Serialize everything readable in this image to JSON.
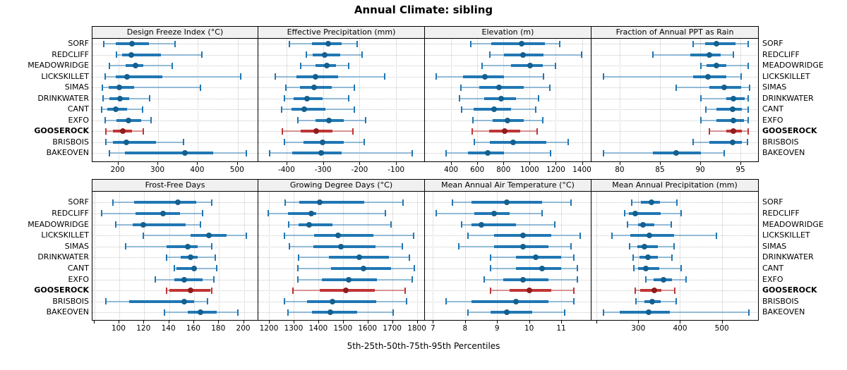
{
  "title": "Annual Climate: sibling",
  "caption": "5th-25th-50th-75th-95th Percentiles",
  "colors": {
    "blue": "#2077b4",
    "blue_dot": "#14608f",
    "blue_light": "rgba(32,119,180,0.45)",
    "red": "#c03535",
    "red_dot": "#8f1d1d",
    "red_light": "rgba(192,53,53,0.5)",
    "grid": "#c8c8c8",
    "strip_bg": "#f0f0f0",
    "border": "#000000"
  },
  "chart_data": {
    "type": "dotplot-percentiles",
    "percentiles": [
      5,
      25,
      50,
      75,
      95
    ],
    "sites": [
      "SORF",
      "REDCLIFF",
      "MEADOWRIDGE",
      "LICKSKILLET",
      "SIMAS",
      "DRINKWATER",
      "CANT",
      "EXFO",
      "GOOSEROCK",
      "BRISBOIS",
      "BAKEOVEN"
    ],
    "highlight_site": "GOOSEROCK",
    "panels": [
      {
        "title": "Design Freeze Index (°C)",
        "row": 0,
        "col": 0,
        "xlim": [
          135,
          550
        ],
        "ticks": [
          200,
          300,
          400,
          500
        ],
        "minor_ticks": [],
        "site_values": [
          [
            164,
            193,
            235,
            276,
            342
          ],
          [
            196,
            210,
            232,
            307,
            410
          ],
          [
            177,
            219,
            244,
            263,
            336
          ],
          [
            167,
            193,
            222,
            310,
            508
          ],
          [
            159,
            176,
            202,
            240,
            406
          ],
          [
            161,
            177,
            204,
            228,
            278
          ],
          [
            158,
            173,
            193,
            222,
            261
          ],
          [
            167,
            196,
            225,
            257,
            282
          ],
          [
            168,
            187,
            212,
            234,
            263
          ],
          [
            168,
            187,
            220,
            295,
            364
          ],
          [
            178,
            216,
            368,
            438,
            521
          ]
        ]
      },
      {
        "title": "Effective Precipitation (mm)",
        "row": 0,
        "col": 1,
        "xlim": [
          -477,
          -25
        ],
        "ticks": [
          -400,
          -300,
          -200,
          -100
        ],
        "minor_ticks": [],
        "site_values": [
          [
            -392,
            -331,
            -285,
            -249,
            -206
          ],
          [
            -345,
            -328,
            -295,
            -252,
            -194
          ],
          [
            -362,
            -321,
            -289,
            -265,
            -230
          ],
          [
            -431,
            -372,
            -320,
            -258,
            -131
          ],
          [
            -401,
            -364,
            -324,
            -277,
            -214
          ],
          [
            -406,
            -381,
            -343,
            -301,
            -229
          ],
          [
            -413,
            -387,
            -352,
            -293,
            -215
          ],
          [
            -368,
            -321,
            -283,
            -243,
            -183
          ],
          [
            -411,
            -362,
            -318,
            -275,
            -219
          ],
          [
            -405,
            -353,
            -301,
            -243,
            -187
          ],
          [
            -447,
            -384,
            -306,
            -250,
            -55
          ]
        ]
      },
      {
        "title": "Elevation (m)",
        "row": 0,
        "col": 2,
        "xlim": [
          200,
          1462
        ],
        "ticks": [
          400,
          600,
          800,
          1000,
          1200,
          1400
        ],
        "minor_ticks": [],
        "site_values": [
          [
            550,
            707,
            938,
            1117,
            1232
          ],
          [
            694,
            804,
            947,
            1108,
            1397
          ],
          [
            635,
            858,
            1006,
            1099,
            1200
          ],
          [
            284,
            493,
            658,
            804,
            1104
          ],
          [
            475,
            617,
            765,
            956,
            1152
          ],
          [
            466,
            653,
            783,
            894,
            1067
          ],
          [
            483,
            573,
            728,
            858,
            1045
          ],
          [
            569,
            716,
            831,
            956,
            1099
          ],
          [
            560,
            689,
            810,
            930,
            1060
          ],
          [
            578,
            698,
            872,
            1126,
            1295
          ],
          [
            363,
            528,
            680,
            804,
            1161
          ]
        ]
      },
      {
        "title": "Fraction of Annual PPT as Rain",
        "row": 0,
        "col": 3,
        "xlim": [
          76.5,
          97.1
        ],
        "ticks": [
          80,
          85,
          90,
          95
        ],
        "minor_ticks": [],
        "site_values": [
          [
            89.1,
            90.6,
            92.0,
            94.4,
            96.0
          ],
          [
            84.1,
            88.8,
            91.1,
            92.5,
            94.1
          ],
          [
            90.1,
            90.8,
            92.0,
            93.2,
            96.0
          ],
          [
            78.0,
            89.1,
            91.0,
            93.2,
            95.1
          ],
          [
            87.0,
            91.1,
            93.0,
            95.1,
            96.1
          ],
          [
            90.1,
            93.2,
            94.1,
            95.5,
            96.0
          ],
          [
            90.7,
            92.0,
            94.0,
            95.2,
            96.0
          ],
          [
            90.1,
            92.0,
            94.1,
            95.4,
            96.0
          ],
          [
            91.1,
            93.2,
            94.1,
            95.2,
            96.0
          ],
          [
            89.1,
            91.1,
            94.0,
            95.2,
            95.9
          ],
          [
            78.0,
            84.1,
            87.0,
            90.1,
            93.0
          ]
        ]
      },
      {
        "title": "Frost-Free Days",
        "row": 1,
        "col": 0,
        "xlim": [
          78.5,
          211
        ],
        "ticks": [
          100,
          120,
          140,
          160,
          180,
          200
        ],
        "minor_ticks": [
          80
        ],
        "site_values": [
          [
            95,
            112,
            147,
            162,
            174
          ],
          [
            86,
            113,
            135,
            149,
            167
          ],
          [
            97,
            111,
            119,
            153,
            165
          ],
          [
            119,
            157,
            172,
            186,
            202
          ],
          [
            105,
            138,
            155,
            163,
            174
          ],
          [
            138,
            149,
            157,
            163,
            177
          ],
          [
            144,
            146,
            160,
            162,
            178
          ],
          [
            129,
            144,
            152,
            167,
            176
          ],
          [
            138,
            140,
            157,
            173,
            174
          ],
          [
            89,
            108,
            152,
            160,
            171
          ],
          [
            136,
            155,
            165,
            178,
            195
          ]
        ]
      },
      {
        "title": "Growing Degree Days (°C)",
        "row": 1,
        "col": 1,
        "xlim": [
          1157,
          1827
        ],
        "ticks": [
          1200,
          1300,
          1400,
          1500,
          1600,
          1700,
          1800
        ],
        "minor_ticks": [],
        "site_values": [
          [
            1266,
            1324,
            1406,
            1586,
            1743
          ],
          [
            1198,
            1278,
            1373,
            1393,
            1672
          ],
          [
            1280,
            1321,
            1362,
            1458,
            1695
          ],
          [
            1262,
            1383,
            1480,
            1624,
            1788
          ],
          [
            1283,
            1380,
            1491,
            1632,
            1741
          ],
          [
            1321,
            1444,
            1567,
            1686,
            1769
          ],
          [
            1318,
            1452,
            1584,
            1695,
            1790
          ],
          [
            1318,
            1416,
            1523,
            1638,
            1780
          ],
          [
            1297,
            1406,
            1511,
            1629,
            1752
          ],
          [
            1262,
            1354,
            1458,
            1634,
            1757
          ],
          [
            1278,
            1376,
            1449,
            1558,
            1703
          ]
        ]
      },
      {
        "title": "Mean Annual Air Temperature (°C)",
        "row": 1,
        "col": 2,
        "xlim": [
          6.75,
          11.9
        ],
        "ticks": [
          7,
          8,
          9,
          10,
          11
        ],
        "minor_ticks": [],
        "site_values": [
          [
            7.6,
            8.2,
            9.3,
            10.4,
            11.3
          ],
          [
            7.1,
            8.3,
            8.9,
            9.4,
            10.4
          ],
          [
            7.9,
            8.2,
            8.5,
            9.6,
            10.8
          ],
          [
            8.1,
            8.9,
            9.8,
            10.7,
            11.6
          ],
          [
            7.8,
            8.9,
            9.8,
            10.6,
            11.3
          ],
          [
            8.8,
            9.6,
            10.2,
            11.0,
            11.4
          ],
          [
            8.8,
            9.6,
            10.4,
            11.0,
            11.5
          ],
          [
            8.6,
            9.2,
            9.8,
            10.6,
            11.5
          ],
          [
            8.8,
            9.4,
            10.0,
            10.7,
            11.4
          ],
          [
            7.4,
            8.2,
            9.6,
            10.6,
            11.4
          ],
          [
            8.1,
            8.8,
            9.3,
            10.1,
            11.1
          ]
        ]
      },
      {
        "title": "Mean Annual Precipitation (mm)",
        "row": 1,
        "col": 3,
        "xlim": [
          188,
          585
        ],
        "ticks": [
          300,
          400,
          500
        ],
        "minor_ticks": [
          200
        ],
        "site_values": [
          [
            285,
            306,
            331,
            352,
            392
          ],
          [
            267,
            278,
            293,
            353,
            402
          ],
          [
            274,
            299,
            311,
            339,
            379
          ],
          [
            237,
            281,
            326,
            385,
            487
          ],
          [
            279,
            298,
            315,
            346,
            386
          ],
          [
            287,
            303,
            323,
            347,
            381
          ],
          [
            290,
            300,
            318,
            351,
            402
          ],
          [
            318,
            337,
            360,
            381,
            414
          ],
          [
            293,
            305,
            338,
            356,
            387
          ],
          [
            294,
            315,
            333,
            354,
            391
          ],
          [
            216,
            255,
            325,
            375,
            564
          ]
        ]
      }
    ]
  }
}
